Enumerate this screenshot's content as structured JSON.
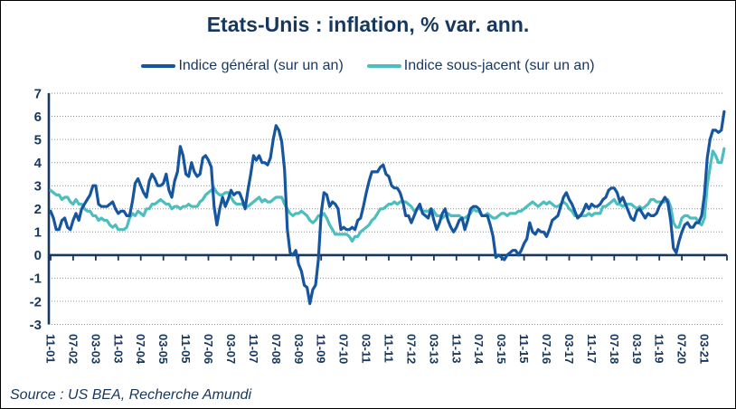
{
  "title": "Etats-Unis : inflation, % var. ann.",
  "source": "Source : US BEA, Recherche Amundi",
  "colors": {
    "text_navy": "#17375D",
    "axis_navy": "#17375D",
    "gridline": "#909090",
    "headline_blue": "#1656A0",
    "core_teal": "#4DBEBE",
    "background": "#FFFFFF",
    "border": "#000000"
  },
  "chart_data": {
    "type": "line",
    "title": "Etats-Unis : inflation, % var. ann.",
    "xlabel": "",
    "ylabel": "",
    "frequency": "monthly",
    "x_start": "2001-11",
    "x_end": "2021-10",
    "ylim": [
      -3,
      7
    ],
    "y_ticks": [
      7,
      6,
      5,
      4,
      3,
      2,
      1,
      0,
      -1,
      -2,
      -3
    ],
    "grid": "horizontal-dotted",
    "legend_position": "top",
    "x_tick_every_months": 8,
    "x_tick_labels": [
      "11-01",
      "07-02",
      "03-03",
      "11-03",
      "07-04",
      "03-05",
      "11-05",
      "07-06",
      "03-07",
      "11-07",
      "07-08",
      "03-09",
      "11-09",
      "07-10",
      "03-11",
      "11-11",
      "07-12",
      "03-13",
      "11-13",
      "07-14",
      "03-15",
      "11-15",
      "07-16",
      "03-17",
      "11-17",
      "07-18",
      "03-19",
      "11-19",
      "07-20",
      "03-21"
    ],
    "series": [
      {
        "name": "Indice général (sur un an)",
        "color": "#1656A0",
        "values": [
          1.9,
          1.6,
          1.1,
          1.1,
          1.5,
          1.6,
          1.2,
          1.1,
          1.5,
          1.8,
          1.5,
          2.0,
          2.2,
          2.4,
          2.6,
          3.0,
          3.0,
          2.2,
          2.1,
          2.1,
          2.1,
          2.2,
          2.3,
          2.0,
          1.8,
          1.9,
          1.9,
          1.7,
          1.7,
          2.3,
          3.1,
          3.3,
          3.0,
          2.7,
          2.5,
          3.2,
          3.5,
          3.3,
          3.0,
          3.0,
          3.1,
          3.5,
          2.8,
          2.5,
          3.2,
          3.6,
          4.7,
          4.3,
          3.5,
          3.4,
          4.0,
          3.6,
          3.4,
          3.5,
          4.2,
          4.3,
          4.1,
          3.8,
          2.1,
          1.3,
          2.0,
          2.5,
          2.1,
          2.4,
          2.8,
          2.6,
          2.7,
          2.7,
          2.4,
          2.0,
          2.8,
          3.5,
          4.3,
          4.1,
          4.3,
          4.0,
          4.0,
          3.9,
          4.2,
          5.0,
          5.6,
          5.4,
          4.9,
          3.7,
          1.1,
          0.1,
          0.0,
          0.2,
          -0.4,
          -0.7,
          -1.3,
          -1.4,
          -2.1,
          -1.5,
          -1.3,
          -0.2,
          1.8,
          2.7,
          2.6,
          2.1,
          2.3,
          2.2,
          2.0,
          1.1,
          1.2,
          1.1,
          1.1,
          1.2,
          1.1,
          1.5,
          1.6,
          2.1,
          2.7,
          3.2,
          3.6,
          3.6,
          3.6,
          3.8,
          3.9,
          3.5,
          3.4,
          3.0,
          2.9,
          2.9,
          2.7,
          2.3,
          1.7,
          1.7,
          1.4,
          1.7,
          2.0,
          2.2,
          1.8,
          1.7,
          1.6,
          2.0,
          1.5,
          1.1,
          1.4,
          1.8,
          2.0,
          1.5,
          1.2,
          1.0,
          1.2,
          1.5,
          1.6,
          1.1,
          1.5,
          2.0,
          2.1,
          2.1,
          2.0,
          1.7,
          1.7,
          1.7,
          1.3,
          0.8,
          -0.1,
          0.0,
          -0.1,
          -0.2,
          0.0,
          0.1,
          0.2,
          0.2,
          0.0,
          0.2,
          0.5,
          0.7,
          1.4,
          1.0,
          0.9,
          1.1,
          1.0,
          1.0,
          0.8,
          1.1,
          1.5,
          1.6,
          1.7,
          2.1,
          2.5,
          2.7,
          2.4,
          2.2,
          1.9,
          1.6,
          1.7,
          1.9,
          2.2,
          2.0,
          2.2,
          2.1,
          2.1,
          2.2,
          2.4,
          2.5,
          2.8,
          2.9,
          2.9,
          2.7,
          2.3,
          2.5,
          2.2,
          1.9,
          1.6,
          1.5,
          1.9,
          2.0,
          1.8,
          1.6,
          1.8,
          1.7,
          1.7,
          1.8,
          2.1,
          2.3,
          2.5,
          2.3,
          1.5,
          0.3,
          0.1,
          0.6,
          1.0,
          1.3,
          1.4,
          1.2,
          1.2,
          1.4,
          1.4,
          1.7,
          2.6,
          4.2,
          5.0,
          5.4,
          5.4,
          5.3,
          5.4,
          6.2
        ]
      },
      {
        "name": "Indice sous-jacent (sur un an)",
        "color": "#4DBEBE",
        "values": [
          2.8,
          2.7,
          2.6,
          2.6,
          2.4,
          2.5,
          2.5,
          2.3,
          2.2,
          2.4,
          2.2,
          2.2,
          2.0,
          1.9,
          1.9,
          1.7,
          1.7,
          1.5,
          1.6,
          1.5,
          1.5,
          1.3,
          1.2,
          1.3,
          1.1,
          1.1,
          1.1,
          1.2,
          1.6,
          1.8,
          1.7,
          1.9,
          1.8,
          1.7,
          2.0,
          2.0,
          2.2,
          2.2,
          2.3,
          2.4,
          2.3,
          2.2,
          2.2,
          2.0,
          2.1,
          2.1,
          2.0,
          2.1,
          2.1,
          2.2,
          2.1,
          2.1,
          2.1,
          2.3,
          2.4,
          2.6,
          2.7,
          2.8,
          2.9,
          2.7,
          2.6,
          2.6,
          2.7,
          2.7,
          2.5,
          2.3,
          2.2,
          2.2,
          2.2,
          2.1,
          2.1,
          2.2,
          2.3,
          2.4,
          2.5,
          2.3,
          2.4,
          2.3,
          2.3,
          2.4,
          2.5,
          2.5,
          2.5,
          2.2,
          2.0,
          1.8,
          1.7,
          1.8,
          1.8,
          1.9,
          1.8,
          1.7,
          1.5,
          1.4,
          1.5,
          1.7,
          1.7,
          1.8,
          1.6,
          1.3,
          1.1,
          0.9,
          0.9,
          0.9,
          0.9,
          0.9,
          0.8,
          0.6,
          0.8,
          0.8,
          1.0,
          1.1,
          1.2,
          1.3,
          1.5,
          1.6,
          1.8,
          2.0,
          2.0,
          2.1,
          2.2,
          2.2,
          2.3,
          2.2,
          2.3,
          2.3,
          2.3,
          2.2,
          2.1,
          1.9,
          2.0,
          2.0,
          1.9,
          1.9,
          1.9,
          2.0,
          1.9,
          1.7,
          1.7,
          1.6,
          1.7,
          1.8,
          1.7,
          1.7,
          1.7,
          1.7,
          1.6,
          1.6,
          1.7,
          1.8,
          2.0,
          1.9,
          1.9,
          1.7,
          1.7,
          1.8,
          1.7,
          1.6,
          1.6,
          1.7,
          1.8,
          1.8,
          1.7,
          1.8,
          1.8,
          1.8,
          1.9,
          1.9,
          2.0,
          2.1,
          2.2,
          2.3,
          2.2,
          2.1,
          2.2,
          2.3,
          2.2,
          2.3,
          2.2,
          2.1,
          2.1,
          2.2,
          2.3,
          2.2,
          2.0,
          1.9,
          1.7,
          1.7,
          1.7,
          1.7,
          1.7,
          1.8,
          1.7,
          1.8,
          1.8,
          1.8,
          2.1,
          2.1,
          2.2,
          2.3,
          2.4,
          2.2,
          2.2,
          2.1,
          2.2,
          2.2,
          2.2,
          2.1,
          2.0,
          2.1,
          2.0,
          2.1,
          2.2,
          2.4,
          2.4,
          2.3,
          2.3,
          2.3,
          2.3,
          2.4,
          2.1,
          1.4,
          1.2,
          1.2,
          1.6,
          1.7,
          1.7,
          1.6,
          1.6,
          1.6,
          1.4,
          1.3,
          1.6,
          3.0,
          3.8,
          4.5,
          4.3,
          4.0,
          4.0,
          4.6
        ]
      }
    ]
  }
}
